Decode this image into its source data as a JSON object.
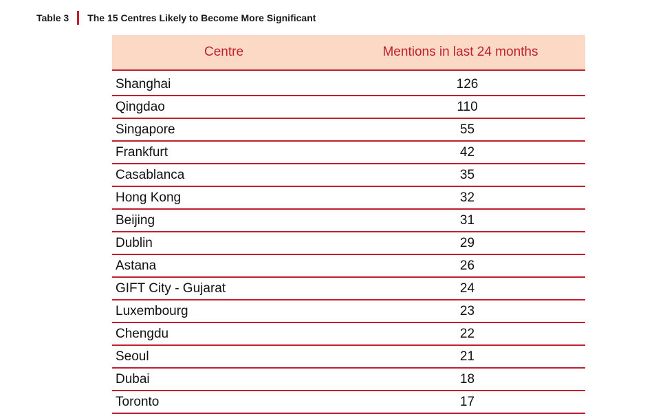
{
  "caption": {
    "label": "Table 3",
    "title": "The 15 Centres Likely to Become More Significant"
  },
  "colors": {
    "accent": "#c0202e",
    "header_bg": "#fbd9c5"
  },
  "table": {
    "columns": [
      "Centre",
      "Mentions in last 24 months"
    ],
    "rows": [
      {
        "centre": "Shanghai",
        "mentions": "126"
      },
      {
        "centre": "Qingdao",
        "mentions": "110"
      },
      {
        "centre": "Singapore",
        "mentions": "55"
      },
      {
        "centre": "Frankfurt",
        "mentions": "42"
      },
      {
        "centre": "Casablanca",
        "mentions": "35"
      },
      {
        "centre": "Hong Kong",
        "mentions": "32"
      },
      {
        "centre": "Beijing",
        "mentions": "31"
      },
      {
        "centre": "Dublin",
        "mentions": "29"
      },
      {
        "centre": "Astana",
        "mentions": "26"
      },
      {
        "centre": "GIFT City - Gujarat",
        "mentions": "24"
      },
      {
        "centre": "Luxembourg",
        "mentions": "23"
      },
      {
        "centre": "Chengdu",
        "mentions": "22"
      },
      {
        "centre": "Seoul",
        "mentions": "21"
      },
      {
        "centre": "Dubai",
        "mentions": "18"
      },
      {
        "centre": "Toronto",
        "mentions": "17"
      }
    ]
  }
}
